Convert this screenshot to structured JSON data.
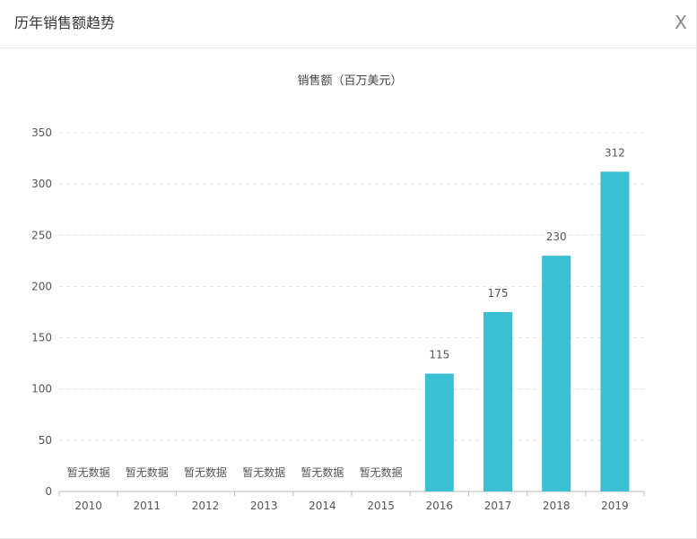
{
  "dialog": {
    "title": "历年销售额趋势",
    "close_label": "X"
  },
  "chart_data": {
    "type": "bar",
    "title": "销售额（百万美元）",
    "xlabel": "",
    "ylabel": "",
    "ylim": [
      0,
      350
    ],
    "yticks": [
      0,
      50,
      100,
      150,
      200,
      250,
      300,
      350
    ],
    "categories": [
      "2010",
      "2011",
      "2012",
      "2013",
      "2014",
      "2015",
      "2016",
      "2017",
      "2018",
      "2019"
    ],
    "values": [
      null,
      null,
      null,
      null,
      null,
      null,
      115,
      175,
      230,
      312
    ],
    "no_data_label": "暂无数据",
    "grid": true,
    "bar_color": "#3bbfd3"
  }
}
